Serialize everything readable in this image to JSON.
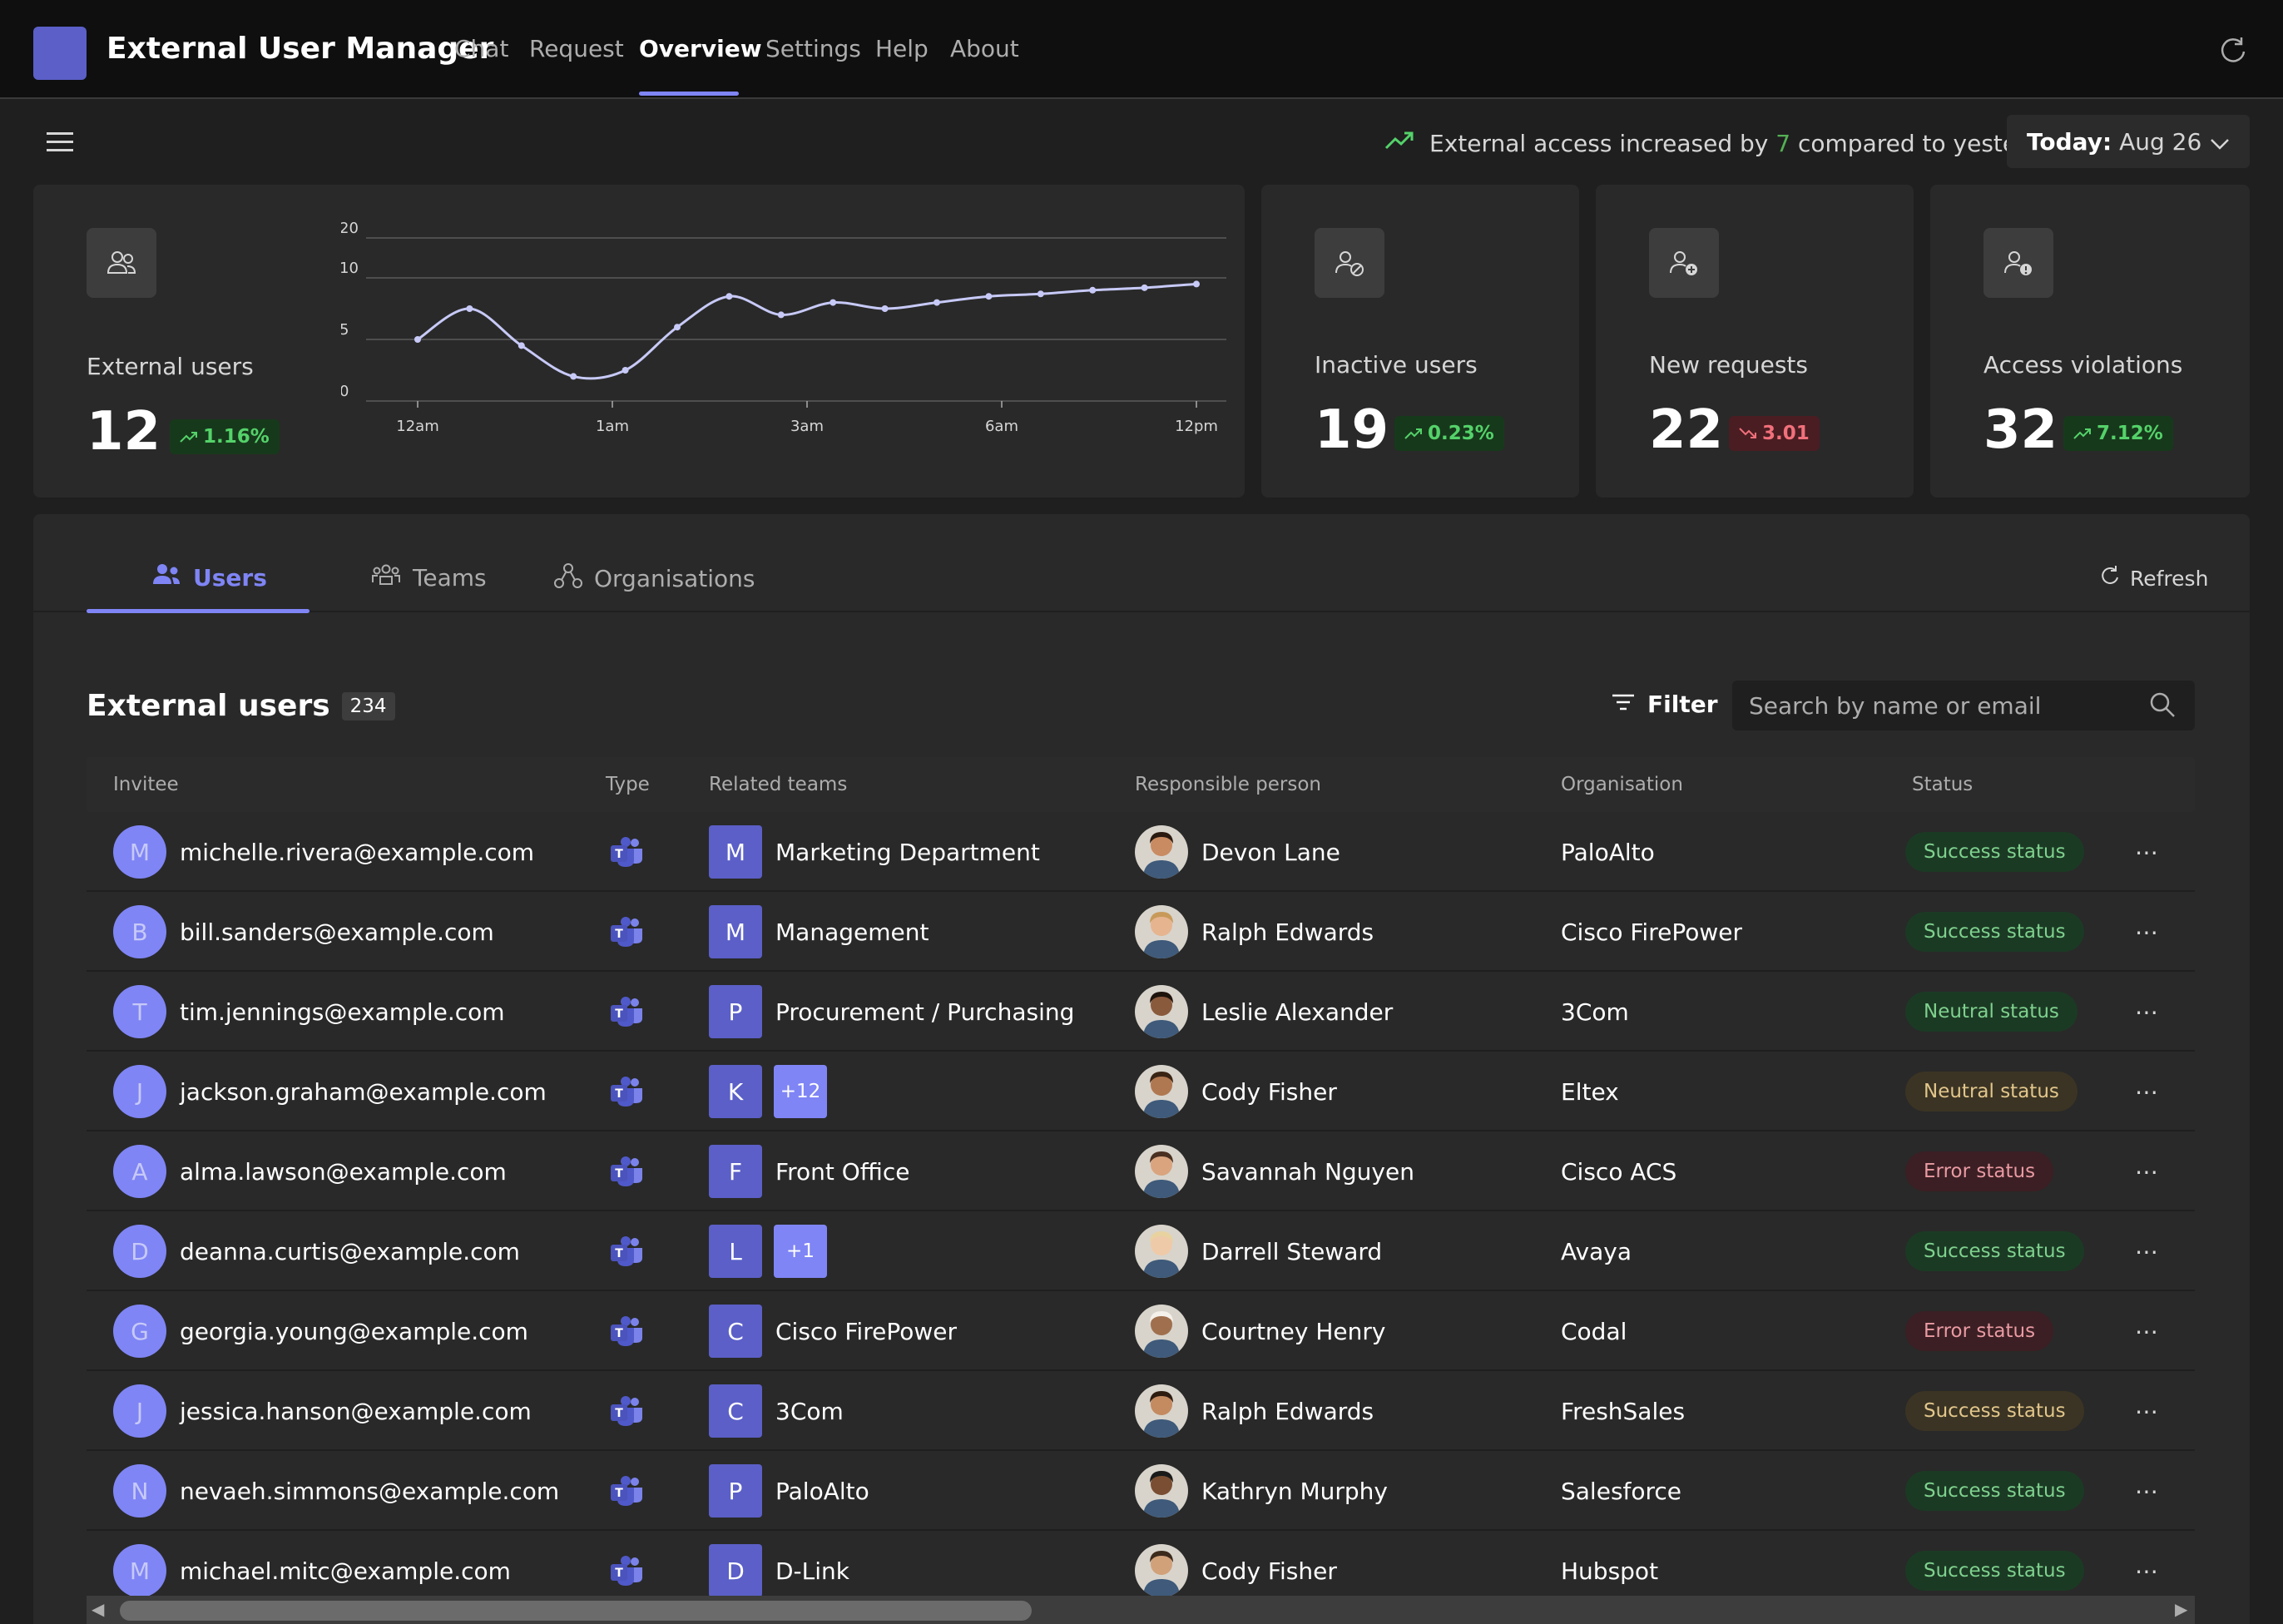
{
  "app": {
    "title": "External User Manager",
    "nav": [
      "Chat",
      "Request",
      "Overview",
      "Settings",
      "Help",
      "About"
    ],
    "active_nav": "Overview"
  },
  "subbar": {
    "trend_prefix": "External access increased by",
    "trend_value": "7",
    "trend_suffix": "compared to yesterday",
    "date_label": "Today:",
    "date_value": "Aug 26"
  },
  "cards": {
    "external": {
      "label": "External users",
      "value": "12",
      "badge": "1.16%",
      "trend": "up"
    },
    "inactive": {
      "label": "Inactive users",
      "value": "19",
      "badge": "0.23%",
      "trend": "up"
    },
    "requests": {
      "label": "New requests",
      "value": "22",
      "badge": "3.01",
      "trend": "down"
    },
    "violations": {
      "label": "Access violations",
      "value": "32",
      "badge": "7.12%",
      "trend": "up"
    }
  },
  "chart_data": {
    "type": "line",
    "x_ticks": [
      "12am",
      "1am",
      "3am",
      "6am",
      "12pm"
    ],
    "y_ticks": [
      "0",
      "5",
      "10",
      "20"
    ],
    "ylim": [
      0,
      20
    ],
    "grid": true,
    "series": [
      {
        "values": [
          5,
          7.5,
          4.5,
          2,
          2.5,
          6,
          8.5,
          7,
          8,
          7.5,
          8,
          8.5,
          8.7,
          9,
          9.2,
          9.5
        ]
      }
    ],
    "color": "#c7c9f7"
  },
  "tabs": {
    "items": [
      "Users",
      "Teams",
      "Organisations"
    ],
    "active": "Users",
    "refresh_label": "Refresh"
  },
  "section": {
    "title": "External users",
    "count": "234",
    "filter_label": "Filter",
    "search_placeholder": "Search by name or email"
  },
  "table": {
    "columns": [
      "Invitee",
      "Type",
      "Related teams",
      "Responsible person",
      "Organisation",
      "Status"
    ],
    "rows": [
      {
        "initial": "M",
        "email": "michelle.rivera@example.com",
        "team_initial": "M",
        "team": "Marketing Department",
        "team_extra": "",
        "person": "Devon Lane",
        "org": "PaloAlto",
        "status": "Success status",
        "status_kind": "success"
      },
      {
        "initial": "B",
        "email": "bill.sanders@example.com",
        "team_initial": "M",
        "team": "Management",
        "team_extra": "",
        "person": "Ralph Edwards",
        "org": "Cisco FirePower",
        "status": "Success status",
        "status_kind": "success"
      },
      {
        "initial": "T",
        "email": "tim.jennings@example.com",
        "team_initial": "P",
        "team": "Procurement / Purchasing",
        "team_extra": "",
        "person": "Leslie Alexander",
        "org": "3Com",
        "status": "Neutral status",
        "status_kind": "neutral-g"
      },
      {
        "initial": "J",
        "email": "jackson.graham@example.com",
        "team_initial": "K",
        "team": "",
        "team_extra": "+12",
        "person": "Cody Fisher",
        "org": "Eltex",
        "status": "Neutral status",
        "status_kind": "neutral"
      },
      {
        "initial": "A",
        "email": "alma.lawson@example.com",
        "team_initial": "F",
        "team": "Front Office",
        "team_extra": "",
        "person": "Savannah Nguyen",
        "org": "Cisco ACS",
        "status": "Error status",
        "status_kind": "error"
      },
      {
        "initial": "D",
        "email": "deanna.curtis@example.com",
        "team_initial": "L",
        "team": "",
        "team_extra": "+1",
        "person": "Darrell Steward",
        "org": "Avaya",
        "status": "Success status",
        "status_kind": "success"
      },
      {
        "initial": "G",
        "email": "georgia.young@example.com",
        "team_initial": "C",
        "team": "Cisco FirePower",
        "team_extra": "",
        "person": "Courtney Henry",
        "org": "Codal",
        "status": "Error status",
        "status_kind": "error"
      },
      {
        "initial": "J",
        "email": "jessica.hanson@example.com",
        "team_initial": "C",
        "team": "3Com",
        "team_extra": "",
        "person": "Ralph Edwards",
        "org": "FreshSales",
        "status": "Success status",
        "status_kind": "neutral"
      },
      {
        "initial": "N",
        "email": "nevaeh.simmons@example.com",
        "team_initial": "P",
        "team": "PaloAlto",
        "team_extra": "",
        "person": "Kathryn Murphy",
        "org": "Salesforce",
        "status": "Success status",
        "status_kind": "success"
      },
      {
        "initial": "M",
        "email": "michael.mitc@example.com",
        "team_initial": "D",
        "team": "D-Link",
        "team_extra": "",
        "person": "Cody Fisher",
        "org": "Hubspot",
        "status": "Success status",
        "status_kind": "success"
      }
    ]
  },
  "colors": {
    "accent": "#7f85f5",
    "brand": "#5b5fc7",
    "success": "#54d26a",
    "error": "#f1707b"
  },
  "icons": {
    "external_card": "people-icon",
    "inactive_card": "people-blocked-icon",
    "requests_card": "people-add-icon",
    "violations_card": "people-warning-icon",
    "type": "teams-icon"
  }
}
